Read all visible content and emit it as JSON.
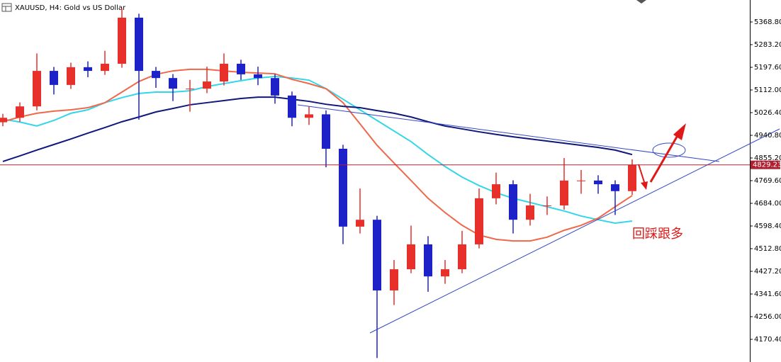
{
  "chart_data": {
    "type": "candlestick",
    "title": "XAUUSD, H4:  Gold vs US Dollar",
    "annotation": "回踩跟多",
    "up_color": "#e8302a",
    "down_color": "#1c22c8",
    "open": [
      4990,
      5007,
      5050,
      5184,
      5131,
      5198,
      5184,
      5211,
      5385,
      5184,
      5157,
      5117,
      5117,
      5144,
      5211,
      5171,
      5157,
      5091,
      5007,
      5020,
      4890,
      4596,
      4622,
      4355,
      4435,
      4529,
      4408,
      4435,
      4529,
      4703,
      4756,
      4622,
      4676,
      4676,
      4770,
      4770,
      4756,
      4730
    ],
    "high": [
      5022,
      5065,
      5250,
      5199,
      5215,
      5220,
      5260,
      5420,
      5400,
      5199,
      5172,
      5150,
      5200,
      5250,
      5226,
      5200,
      5172,
      5106,
      5050,
      5035,
      4905,
      4740,
      4637,
      4470,
      4600,
      4560,
      4470,
      4580,
      4740,
      4800,
      4771,
      4720,
      4710,
      4855,
      4810,
      4790,
      4771,
      4850
    ],
    "low": [
      4975,
      4992,
      5035,
      5095,
      5116,
      5160,
      5169,
      5196,
      5000,
      5120,
      5070,
      5030,
      5100,
      5129,
      5150,
      5130,
      5060,
      4975,
      4980,
      4820,
      4530,
      4570,
      4100,
      4300,
      4420,
      4350,
      4380,
      4420,
      4514,
      4680,
      4570,
      4600,
      4640,
      4660,
      4720,
      4720,
      4640,
      4715
    ],
    "close": [
      5007,
      5050,
      5184,
      5131,
      5198,
      5184,
      5211,
      5385,
      5184,
      5157,
      5117,
      5117,
      5144,
      5211,
      5171,
      5157,
      5091,
      5007,
      5020,
      4890,
      4596,
      4622,
      4355,
      4435,
      4529,
      4408,
      4435,
      4529,
      4703,
      4756,
      4622,
      4676,
      4676,
      4770,
      4770,
      4756,
      4730,
      4829
    ],
    "series": [
      {
        "color": "#33d6e8",
        "values": [
          5002,
          4991,
          4976,
          4997,
          5024,
          5037,
          5064,
          5083,
          5099,
          5104,
          5104,
          5109,
          5125,
          5136,
          5147,
          5157,
          5163,
          5157,
          5149,
          5117,
          5077,
          5037,
          4997,
          4957,
          4917,
          4868,
          4823,
          4783,
          4751,
          4724,
          4703,
          4687,
          4671,
          4655,
          4636,
          4622,
          4609,
          4617
        ]
      },
      {
        "color": "#f0684a",
        "values": [
          4992,
          5010,
          5024,
          5032,
          5037,
          5045,
          5064,
          5104,
          5144,
          5171,
          5184,
          5190,
          5190,
          5184,
          5179,
          5176,
          5173,
          5152,
          5136,
          5117,
          5064,
          4984,
          4903,
          4836,
          4770,
          4703,
          4649,
          4601,
          4564,
          4548,
          4542,
          4542,
          4556,
          4582,
          4601,
          4628,
          4671,
          4713
        ]
      },
      {
        "color": "#10187a",
        "values": [
          4842,
          4863,
          4885,
          4906,
          4927,
          4949,
          4970,
          4992,
          5010,
          5029,
          5042,
          5056,
          5064,
          5072,
          5080,
          5085,
          5085,
          5077,
          5069,
          5058,
          5050,
          5045,
          5034,
          5024,
          5010,
          4992,
          4976,
          4965,
          4954,
          4944,
          4935,
          4927,
          4919,
          4911,
          4903,
          4895,
          4885,
          4868
        ]
      }
    ],
    "last_price": 4829.23,
    "last_price_label": "4829.23",
    "ylim": [
      4084.8,
      5451.7
    ],
    "yticks": [
      {
        "value": 5368.8,
        "label": "5368.80"
      },
      {
        "value": 5283.2,
        "label": "5283.20"
      },
      {
        "value": 5197.6,
        "label": "5197.60"
      },
      {
        "value": 5112,
        "label": "5112.00"
      },
      {
        "value": 5026.4,
        "label": "5026.40"
      },
      {
        "value": 4940.8,
        "label": "4940.80"
      },
      {
        "value": 4855.2,
        "label": "4855.20"
      },
      {
        "value": 4769.6,
        "label": "4769.60"
      },
      {
        "value": 4684,
        "label": "4684.00"
      },
      {
        "value": 4598.4,
        "label": "4598.40"
      },
      {
        "value": 4512.8,
        "label": "4512.80"
      },
      {
        "value": 4427.2,
        "label": "4427.20"
      },
      {
        "value": 4341.6,
        "label": "4341.60"
      },
      {
        "value": 4256,
        "label": "4256.00"
      },
      {
        "value": 4170.4,
        "label": "4170.40"
      }
    ]
  }
}
